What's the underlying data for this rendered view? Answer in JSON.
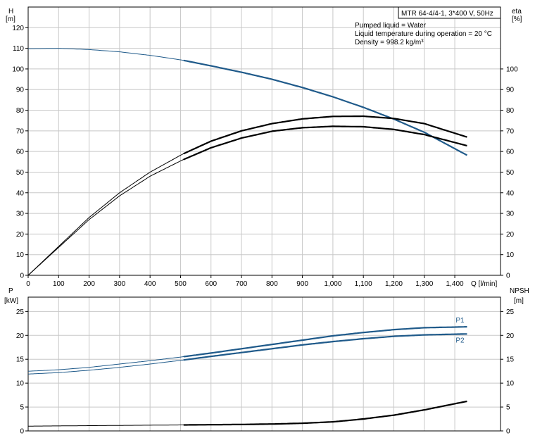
{
  "chart_data": [
    {
      "type": "line",
      "panel": "pump-performance",
      "title_box": "MTR 64-4/4-1, 3*400 V, 50Hz",
      "info_lines": [
        "Pumped liquid = Water",
        "Liquid temperature during operation = 20 °C",
        "Density = 998.2 kg/m³"
      ],
      "x_label": "Q [l/min]",
      "y_label_left": [
        "H",
        "[m]"
      ],
      "y_label_right": [
        "eta",
        "[%]"
      ],
      "xlim": [
        0,
        1550
      ],
      "ylim_left": [
        0,
        130
      ],
      "ylim_right": [
        0,
        130
      ],
      "x_ticks": [
        0,
        100,
        200,
        300,
        400,
        500,
        600,
        700,
        800,
        900,
        1000,
        1100,
        1200,
        1300,
        1400
      ],
      "x_tick_labels": [
        "0",
        "100",
        "200",
        "300",
        "400",
        "500",
        "600",
        "700",
        "800",
        "900",
        "1,000",
        "1,100",
        "1,200",
        "1,300",
        "1,400"
      ],
      "y_ticks_left": [
        0,
        10,
        20,
        30,
        40,
        50,
        60,
        70,
        80,
        90,
        100,
        110,
        120
      ],
      "y_ticks_right": [
        0,
        10,
        20,
        30,
        40,
        50,
        60,
        70,
        80,
        90,
        100
      ],
      "grid": true,
      "series": [
        {
          "id": "H",
          "axis": "left",
          "color": "#1f5a8a",
          "work_start": 505,
          "x": [
            0,
            100,
            200,
            300,
            400,
            505,
            600,
            700,
            800,
            900,
            1000,
            1100,
            1200,
            1300,
            1440
          ],
          "y": [
            109.8,
            110.0,
            109.4,
            108.3,
            106.6,
            104.3,
            101.5,
            98.4,
            95.0,
            91.0,
            86.5,
            81.4,
            75.7,
            69.3,
            58.2
          ]
        },
        {
          "id": "eta_p1",
          "axis": "right",
          "color": "#000000",
          "work_start": 505,
          "x": [
            0,
            100,
            200,
            300,
            400,
            505,
            600,
            700,
            800,
            900,
            1000,
            1100,
            1200,
            1300,
            1440
          ],
          "y": [
            0,
            14.0,
            28.0,
            40.0,
            50.0,
            58.6,
            65.0,
            70.0,
            73.5,
            75.8,
            77.0,
            77.1,
            76.0,
            73.5,
            67.0
          ]
        },
        {
          "id": "eta_p2",
          "axis": "right",
          "color": "#000000",
          "work_start": 505,
          "x": [
            0,
            100,
            200,
            300,
            400,
            505,
            600,
            700,
            800,
            900,
            1000,
            1100,
            1200,
            1300,
            1440
          ],
          "y": [
            0,
            13.5,
            27.0,
            38.5,
            48.0,
            55.8,
            61.8,
            66.5,
            69.8,
            71.5,
            72.2,
            72.0,
            70.7,
            68.2,
            62.8
          ]
        }
      ]
    },
    {
      "type": "line",
      "panel": "power-npsh",
      "y_label_left": [
        "P",
        "[kW]"
      ],
      "y_label_right": [
        "NPSH",
        "[m]"
      ],
      "xlim": [
        0,
        1550
      ],
      "ylim_left": [
        0,
        28
      ],
      "ylim_right": [
        0,
        28
      ],
      "y_ticks_left": [
        0,
        5,
        10,
        15,
        20,
        25
      ],
      "y_ticks_right": [
        0,
        5,
        10,
        15,
        20,
        25
      ],
      "grid": true,
      "series": [
        {
          "id": "P1",
          "name": "P1",
          "axis": "left",
          "color": "#1f5a8a",
          "work_start": 505,
          "x": [
            0,
            100,
            200,
            300,
            400,
            505,
            600,
            700,
            800,
            900,
            1000,
            1100,
            1200,
            1300,
            1440
          ],
          "y": [
            12.5,
            12.8,
            13.3,
            14.0,
            14.7,
            15.5,
            16.3,
            17.2,
            18.1,
            19.0,
            19.9,
            20.6,
            21.2,
            21.6,
            21.8
          ]
        },
        {
          "id": "P2",
          "name": "P2",
          "axis": "left",
          "color": "#1f5a8a",
          "work_start": 505,
          "x": [
            0,
            100,
            200,
            300,
            400,
            505,
            600,
            700,
            800,
            900,
            1000,
            1100,
            1200,
            1300,
            1440
          ],
          "y": [
            11.9,
            12.2,
            12.7,
            13.3,
            14.0,
            14.8,
            15.6,
            16.4,
            17.2,
            18.0,
            18.7,
            19.3,
            19.8,
            20.1,
            20.3
          ]
        },
        {
          "id": "NPSH",
          "axis": "right",
          "color": "#000000",
          "work_start": 505,
          "x": [
            0,
            100,
            200,
            300,
            400,
            505,
            600,
            700,
            800,
            900,
            1000,
            1100,
            1200,
            1300,
            1440
          ],
          "y": [
            1.0,
            1.05,
            1.1,
            1.15,
            1.2,
            1.25,
            1.3,
            1.35,
            1.45,
            1.6,
            1.9,
            2.5,
            3.3,
            4.4,
            6.2
          ]
        }
      ]
    }
  ]
}
